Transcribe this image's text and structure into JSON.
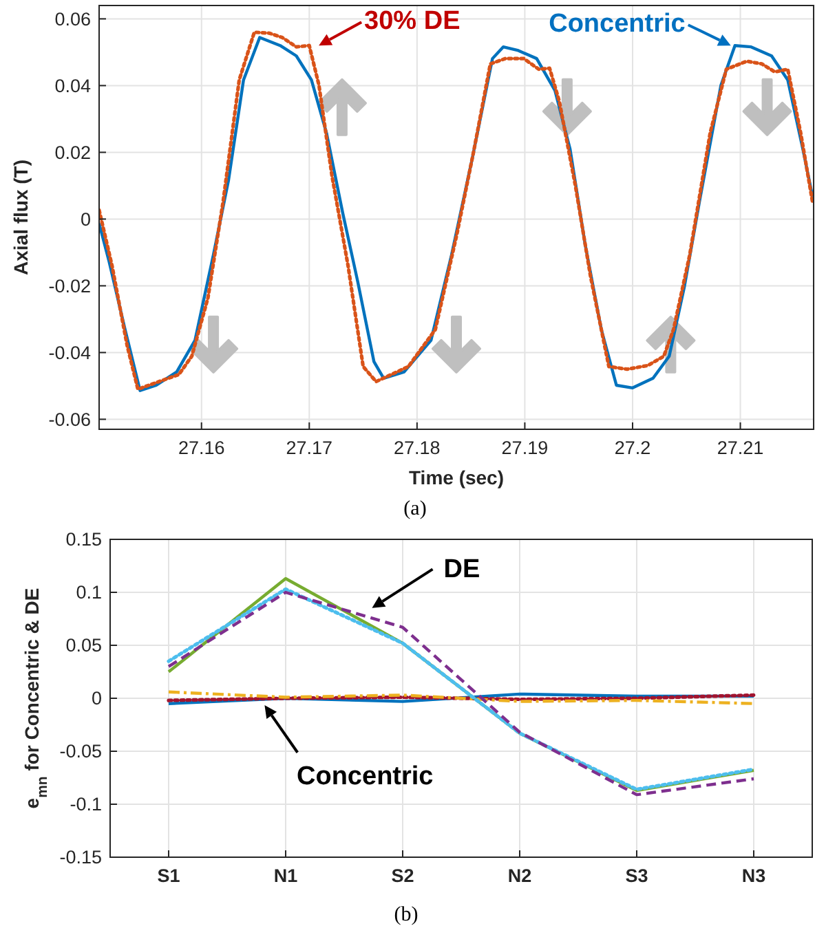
{
  "chart_data": [
    {
      "type": "line",
      "subtitle": "(a)",
      "xlabel": "Time (sec)",
      "ylabel": "Axial flux (T)",
      "xlim": [
        27.1505,
        27.2168
      ],
      "ylim": [
        -0.063,
        0.064
      ],
      "xticks": [
        27.16,
        27.17,
        27.18,
        27.19,
        27.2,
        27.21
      ],
      "yticks": [
        -0.06,
        -0.04,
        -0.02,
        0,
        0.02,
        0.04,
        0.06
      ],
      "grid": true,
      "marker": "none",
      "annotations": [
        {
          "text": "30% DE",
          "x": 27.1705,
          "y": 0.052
        },
        {
          "text": "Concentric",
          "x": 27.2095,
          "y": 0.052
        }
      ],
      "series": [
        {
          "color": "#0072bd",
          "line_style": "solid",
          "x": [
            27.1505,
            27.1514,
            27.1529,
            27.1543,
            27.1558,
            27.1577,
            27.1594,
            27.1611,
            27.1625,
            27.1639,
            27.1654,
            27.1673,
            27.1688,
            27.1702,
            27.1716,
            27.1731,
            27.1745,
            27.176,
            27.1769,
            27.1788,
            27.1813,
            27.1832,
            27.1851,
            27.187,
            27.188,
            27.1894,
            27.1911,
            27.1928,
            27.1942,
            27.1956,
            27.1971,
            27.1985,
            27.2,
            27.2019,
            27.2034,
            27.2048,
            27.2062,
            27.2082,
            27.2095,
            27.211,
            27.2129,
            27.2144,
            27.2158,
            27.2167
          ],
          "values": [
            -0.0013,
            -0.0124,
            -0.033,
            -0.0514,
            -0.0498,
            -0.0458,
            -0.0363,
            -0.0108,
            0.0115,
            0.0417,
            0.0544,
            0.052,
            0.0489,
            0.0417,
            0.0258,
            0.0019,
            -0.0188,
            -0.0427,
            -0.0477,
            -0.0458,
            -0.0363,
            -0.0108,
            0.0178,
            0.0481,
            0.0516,
            0.0505,
            0.0481,
            0.0385,
            0.021,
            -0.0076,
            -0.0331,
            -0.0498,
            -0.0506,
            -0.0477,
            -0.0411,
            -0.0204,
            0.0051,
            0.0401,
            0.052,
            0.0516,
            0.0489,
            0.0417,
            0.021,
            0.0067
          ]
        },
        {
          "color": "#d95319",
          "line_style": "dotted",
          "x": [
            27.1505,
            27.1517,
            27.1531,
            27.1541,
            27.1558,
            27.1579,
            27.1591,
            27.1606,
            27.162,
            27.1635,
            27.1649,
            27.1663,
            27.1675,
            27.1688,
            27.17,
            27.1709,
            27.1721,
            27.1736,
            27.175,
            27.1762,
            27.1792,
            27.1817,
            27.1837,
            27.1853,
            27.1868,
            27.1882,
            27.1899,
            27.1913,
            27.1923,
            27.1932,
            27.1947,
            27.1961,
            27.1978,
            27.1995,
            27.2014,
            27.2029,
            27.2038,
            27.2053,
            27.2072,
            27.2087,
            27.2106,
            27.212,
            27.2132,
            27.2144,
            27.2156,
            27.2167
          ],
          "values": [
            0.0027,
            -0.014,
            -0.0379,
            -0.051,
            -0.049,
            -0.0466,
            -0.0411,
            -0.0236,
            0.0051,
            0.0417,
            0.056,
            0.0557,
            0.0544,
            0.0516,
            0.052,
            0.0401,
            0.0131,
            -0.014,
            -0.0442,
            -0.0487,
            -0.0442,
            -0.0331,
            -0.0045,
            0.021,
            0.0465,
            0.0481,
            0.0481,
            0.0449,
            0.0452,
            0.0353,
            0.0099,
            -0.0172,
            -0.0442,
            -0.045,
            -0.0439,
            -0.0411,
            -0.0331,
            -0.0108,
            0.0258,
            0.0449,
            0.0473,
            0.0465,
            0.0441,
            0.0449,
            0.0258,
            0.0051
          ]
        }
      ]
    },
    {
      "type": "line",
      "subtitle": "(b)",
      "ylabel": "e$_{mn}$ for Concentric & DE",
      "categories": [
        "S1",
        "N1",
        "S2",
        "N2",
        "S3",
        "N3"
      ],
      "ylim": [
        -0.15,
        0.15
      ],
      "yticks": [
        -0.15,
        -0.1,
        -0.05,
        0,
        0.05,
        0.1,
        0.15
      ],
      "grid": true,
      "marker": "none",
      "annotations": [
        "DE",
        {
          "text": "Concentric",
          "y": 0
        }
      ],
      "series": [
        {
          "color": "#0072bd",
          "line_style": "solid",
          "values": [
            -0.005,
            0,
            -0.003,
            0.004,
            0.002,
            0.002
          ]
        },
        {
          "color": "#a2142f",
          "line_style": "dotted",
          "values": [
            -0.002,
            0,
            0.001,
            -0.001,
            0,
            0.003
          ]
        },
        {
          "color": "#edb120",
          "line_style": "dashdot",
          "values": [
            0.006,
            0.001,
            0.003,
            -0.003,
            -0.002,
            -0.005
          ]
        },
        {
          "color": "#77ac30",
          "line_style": "solid",
          "values": [
            0.025,
            0.113,
            0.052,
            -0.033,
            -0.087,
            -0.068
          ]
        },
        {
          "color": "#4dbeee",
          "line_style": "dotted",
          "values": [
            0.035,
            0.103,
            0.052,
            -0.033,
            -0.086,
            -0.067
          ]
        },
        {
          "color": "#7e2f8e",
          "line_style": "dashed",
          "values": [
            0.03,
            0.1,
            0.067,
            -0.032,
            -0.091,
            -0.076
          ]
        }
      ]
    }
  ]
}
